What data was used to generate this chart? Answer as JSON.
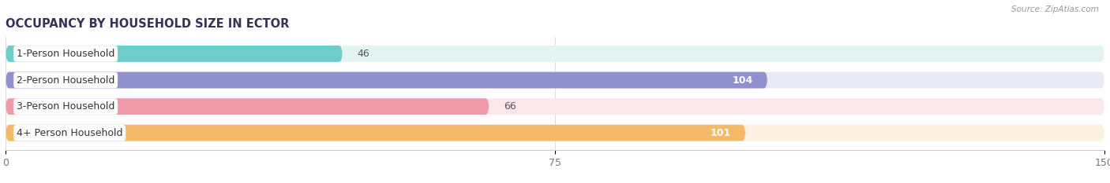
{
  "title": "OCCUPANCY BY HOUSEHOLD SIZE IN ECTOR",
  "source": "Source: ZipAtlas.com",
  "categories": [
    "1-Person Household",
    "2-Person Household",
    "3-Person Household",
    "4+ Person Household"
  ],
  "values": [
    46,
    104,
    66,
    101
  ],
  "bar_colors": [
    "#6dcdc8",
    "#9090cc",
    "#f09aaa",
    "#f5b96a"
  ],
  "background_colors": [
    "#e4f4f3",
    "#eaeaf5",
    "#fce8ec",
    "#fdf2e2"
  ],
  "xlim": [
    0,
    150
  ],
  "xticks": [
    0,
    75,
    150
  ],
  "value_threshold": 80,
  "bar_height": 0.62,
  "figsize": [
    14.06,
    2.33
  ],
  "dpi": 100,
  "title_color": "#333355",
  "source_color": "#999999",
  "bg_color": "#ffffff",
  "label_fontsize": 9.0,
  "value_fontsize": 9.0
}
